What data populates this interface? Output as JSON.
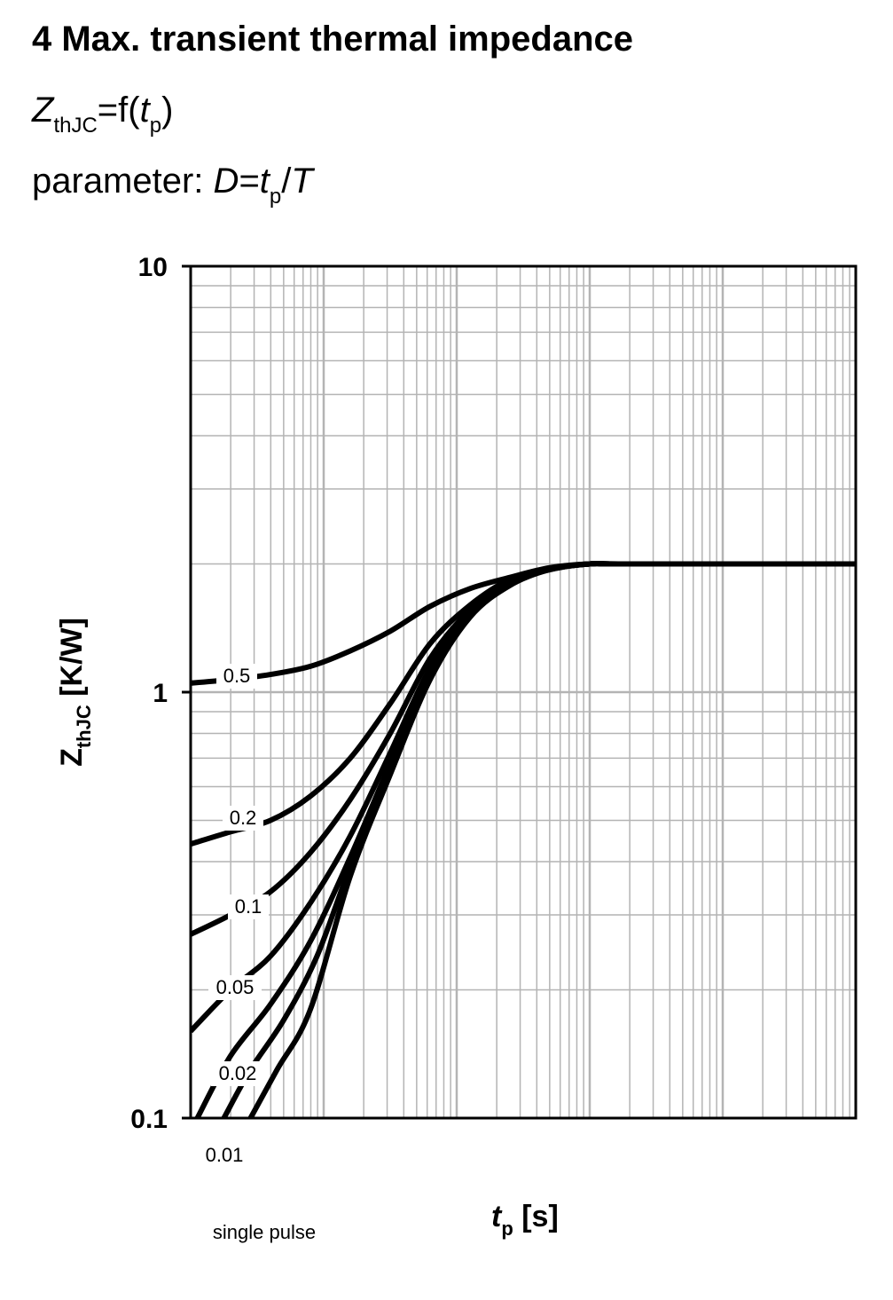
{
  "page": {
    "heading": "4 Max. transient thermal impedance",
    "formula": {
      "z": "Z",
      "z_sub": "thJC",
      "eq": "=f(",
      "t": "t",
      "t_sub": "p",
      "close": ")"
    },
    "parameter": {
      "label": "parameter:",
      "d": "D",
      "eq": "=",
      "t": "t",
      "t_sub": "p",
      "slash": "/",
      "T": "T"
    }
  },
  "chart_data": {
    "type": "line",
    "title": "",
    "xlabel": "t",
    "xlabel_sub": "p",
    "xlabel_unit": " [s]",
    "ylabel": "Z",
    "ylabel_sub": "thJC",
    "ylabel_unit": " [K/W]",
    "x_scale": "log",
    "y_scale": "log",
    "x_decades": 5,
    "xlim_note": "x tick labels not printed",
    "ylim": [
      0.1,
      10
    ],
    "y_ticks": [
      "0.1",
      "1",
      "10"
    ],
    "grid": true,
    "line_color": "#000000",
    "grid_color": "#b4b4b4",
    "series": [
      {
        "name": "0.5",
        "points": [
          [
            0.0,
            1.05
          ],
          [
            0.3,
            1.07
          ],
          [
            0.6,
            1.1
          ],
          [
            0.9,
            1.15
          ],
          [
            1.2,
            1.25
          ],
          [
            1.5,
            1.39
          ],
          [
            1.8,
            1.59
          ],
          [
            2.1,
            1.75
          ],
          [
            2.4,
            1.86
          ],
          [
            2.7,
            1.96
          ],
          [
            3.0,
            2.0
          ],
          [
            3.3,
            2.0
          ],
          [
            5.0,
            2.0
          ]
        ]
      },
      {
        "name": "0.2",
        "points": [
          [
            0.0,
            0.44
          ],
          [
            0.3,
            0.47
          ],
          [
            0.6,
            0.5
          ],
          [
            0.9,
            0.57
          ],
          [
            1.2,
            0.7
          ],
          [
            1.5,
            0.94
          ],
          [
            1.8,
            1.3
          ],
          [
            2.1,
            1.6
          ],
          [
            2.4,
            1.84
          ],
          [
            2.7,
            1.95
          ],
          [
            3.0,
            2.0
          ],
          [
            3.3,
            2.0
          ],
          [
            5.0,
            2.0
          ]
        ]
      },
      {
        "name": "0.1",
        "points": [
          [
            0.0,
            0.27
          ],
          [
            0.3,
            0.3
          ],
          [
            0.6,
            0.34
          ],
          [
            0.9,
            0.42
          ],
          [
            1.2,
            0.56
          ],
          [
            1.5,
            0.8
          ],
          [
            1.8,
            1.2
          ],
          [
            2.1,
            1.56
          ],
          [
            2.4,
            1.82
          ],
          [
            2.7,
            1.95
          ],
          [
            3.0,
            2.0
          ],
          [
            3.3,
            2.0
          ],
          [
            5.0,
            2.0
          ]
        ]
      },
      {
        "name": "0.05",
        "points": [
          [
            0.0,
            0.16
          ],
          [
            0.3,
            0.2
          ],
          [
            0.6,
            0.24
          ],
          [
            0.9,
            0.32
          ],
          [
            1.2,
            0.46
          ],
          [
            1.5,
            0.72
          ],
          [
            1.8,
            1.14
          ],
          [
            2.1,
            1.54
          ],
          [
            2.4,
            1.81
          ],
          [
            2.7,
            1.94
          ],
          [
            3.0,
            2.0
          ],
          [
            3.3,
            2.0
          ],
          [
            5.0,
            2.0
          ]
        ]
      },
      {
        "name": "0.02",
        "points": [
          [
            0.05,
            0.1
          ],
          [
            0.3,
            0.14
          ],
          [
            0.6,
            0.185
          ],
          [
            0.9,
            0.26
          ],
          [
            1.2,
            0.41
          ],
          [
            1.5,
            0.68
          ],
          [
            1.8,
            1.11
          ],
          [
            2.1,
            1.52
          ],
          [
            2.4,
            1.8
          ],
          [
            2.7,
            1.94
          ],
          [
            3.0,
            2.0
          ],
          [
            3.3,
            2.0
          ],
          [
            5.0,
            2.0
          ]
        ]
      },
      {
        "name": "0.01",
        "points": [
          [
            0.25,
            0.1
          ],
          [
            0.45,
            0.13
          ],
          [
            0.7,
            0.17
          ],
          [
            0.95,
            0.24
          ],
          [
            1.2,
            0.39
          ],
          [
            1.5,
            0.66
          ],
          [
            1.8,
            1.09
          ],
          [
            2.1,
            1.51
          ],
          [
            2.4,
            1.79
          ],
          [
            2.7,
            1.94
          ],
          [
            3.0,
            2.0
          ],
          [
            3.3,
            2.0
          ],
          [
            5.0,
            2.0
          ]
        ]
      },
      {
        "name": "single pulse",
        "points": [
          [
            0.45,
            0.1
          ],
          [
            0.65,
            0.13
          ],
          [
            0.9,
            0.18
          ],
          [
            1.2,
            0.37
          ],
          [
            1.5,
            0.64
          ],
          [
            1.8,
            1.07
          ],
          [
            2.1,
            1.5
          ],
          [
            2.4,
            1.78
          ],
          [
            2.7,
            1.94
          ],
          [
            3.0,
            2.0
          ],
          [
            3.3,
            2.0
          ],
          [
            5.0,
            2.0
          ]
        ]
      }
    ]
  }
}
